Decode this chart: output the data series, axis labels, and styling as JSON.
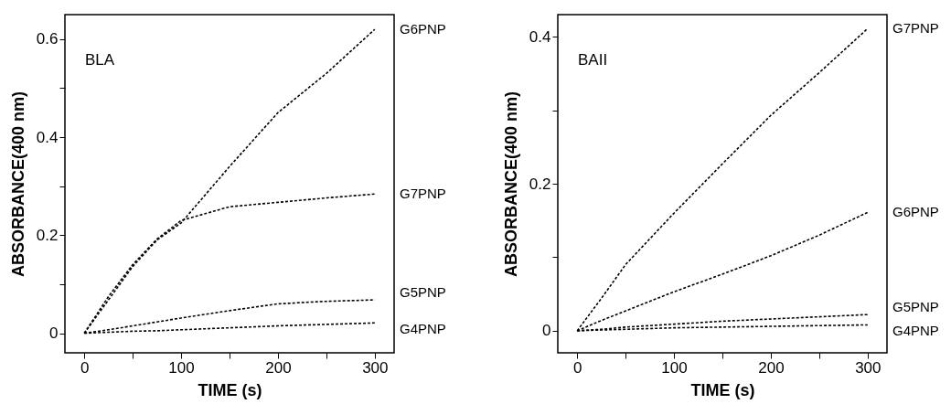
{
  "chart_data": [
    {
      "type": "line",
      "title": "BLA",
      "xlabel": "TIME (s)",
      "ylabel": "ABSORBANCE(400 nm)",
      "line_style": "dashed",
      "grid": false,
      "legend": false,
      "xlim": [
        -20,
        320
      ],
      "xticks": [
        0,
        {
          "value": 50,
          "label": null
        },
        100,
        {
          "value": 150,
          "label": null
        },
        200,
        {
          "value": 250,
          "label": null
        },
        300
      ],
      "ylim": [
        -0.04,
        0.65
      ],
      "yticks": [
        0,
        {
          "value": 0.1,
          "label": null
        },
        0.2,
        {
          "value": 0.3,
          "label": null
        },
        0.4,
        {
          "value": 0.5,
          "label": null
        },
        0.6
      ],
      "x": [
        0,
        25,
        50,
        75,
        100,
        150,
        200,
        250,
        300
      ],
      "series": [
        {
          "name": "G6PNP",
          "color": "#000000",
          "values": [
            0,
            0.068,
            0.136,
            0.19,
            0.225,
            0.34,
            0.45,
            0.53,
            0.62
          ]
        },
        {
          "name": "G7PNP",
          "color": "#000000",
          "values": [
            0,
            0.075,
            0.14,
            0.192,
            0.23,
            0.258,
            0.267,
            0.276,
            0.284
          ]
        },
        {
          "name": "G5PNP",
          "color": "#000000",
          "values": [
            0,
            0.007,
            0.015,
            0.023,
            0.031,
            0.046,
            0.06,
            0.065,
            0.068
          ]
        },
        {
          "name": "G4PNP",
          "color": "#000000",
          "values": [
            0,
            0.002,
            0.004,
            0.005,
            0.007,
            0.011,
            0.015,
            0.018,
            0.021
          ]
        }
      ]
    },
    {
      "type": "line",
      "title": "BAII",
      "xlabel": "TIME (s)",
      "ylabel": "ABSORBANCE(400 nm)",
      "line_style": "dashed",
      "grid": false,
      "legend": false,
      "xlim": [
        -20,
        320
      ],
      "xticks": [
        0,
        {
          "value": 50,
          "label": null
        },
        100,
        {
          "value": 150,
          "label": null
        },
        200,
        {
          "value": 250,
          "label": null
        },
        300
      ],
      "ylim": [
        -0.03,
        0.43
      ],
      "yticks": [
        0,
        {
          "value": 0.1,
          "label": null
        },
        0.2,
        {
          "value": 0.3,
          "label": null
        },
        0.4
      ],
      "x": [
        0,
        25,
        50,
        100,
        150,
        200,
        250,
        300
      ],
      "series": [
        {
          "name": "G7PNP",
          "color": "#000000",
          "values": [
            0,
            0.044,
            0.09,
            0.16,
            0.227,
            0.293,
            0.351,
            0.411
          ]
        },
        {
          "name": "G6PNP",
          "color": "#000000",
          "values": [
            0,
            0.014,
            0.027,
            0.053,
            0.077,
            0.102,
            0.13,
            0.161
          ]
        },
        {
          "name": "G5PNP",
          "color": "#000000",
          "values": [
            0,
            0.002,
            0.005,
            0.009,
            0.013,
            0.016,
            0.019,
            0.022
          ]
        },
        {
          "name": "G4PNP",
          "color": "#000000",
          "values": [
            0,
            0.001,
            0.002,
            0.004,
            0.005,
            0.006,
            0.007,
            0.008
          ]
        }
      ]
    }
  ]
}
